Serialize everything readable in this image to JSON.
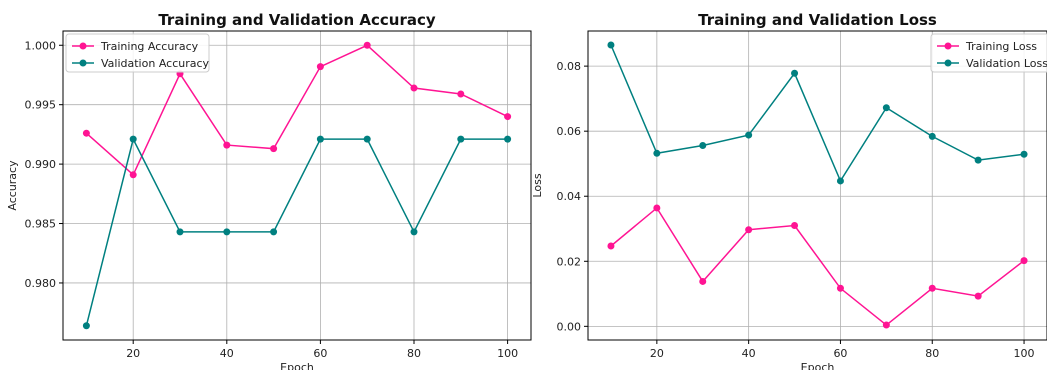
{
  "chart_data": [
    {
      "type": "line",
      "title": "Training and Validation Accuracy",
      "xlabel": "Epoch",
      "ylabel": "Accuracy",
      "x": [
        10,
        20,
        30,
        40,
        50,
        60,
        70,
        80,
        90,
        100
      ],
      "xlim": [
        5,
        105
      ],
      "ylim": [
        0.9752,
        1.0012
      ],
      "xticks": [
        20,
        40,
        60,
        80,
        100
      ],
      "xtick_labels": [
        "20",
        "40",
        "60",
        "80",
        "100"
      ],
      "yticks": [
        0.98,
        0.985,
        0.99,
        0.995,
        1.0
      ],
      "ytick_labels": [
        "0.980",
        "0.985",
        "0.990",
        "0.995",
        "1.000"
      ],
      "grid": true,
      "legend_position": "top-left",
      "series": [
        {
          "name": "Training Accuracy",
          "color": "#ff1493",
          "values": [
            0.9926,
            0.9891,
            0.9976,
            0.9916,
            0.9913,
            0.9982,
            1.0,
            0.9964,
            0.9959,
            0.994
          ]
        },
        {
          "name": "Validation Accuracy",
          "color": "#008080",
          "values": [
            0.9764,
            0.9921,
            0.9843,
            0.9843,
            0.9843,
            0.9921,
            0.9921,
            0.9843,
            0.9921,
            0.9921
          ]
        }
      ]
    },
    {
      "type": "line",
      "title": "Training and Validation Loss",
      "xlabel": "Epoch",
      "ylabel": "Loss",
      "x": [
        10,
        20,
        30,
        40,
        50,
        60,
        70,
        80,
        90,
        100
      ],
      "xlim": [
        5,
        105
      ],
      "ylim": [
        -0.0042,
        0.0908
      ],
      "xticks": [
        20,
        40,
        60,
        80,
        100
      ],
      "xtick_labels": [
        "20",
        "40",
        "60",
        "80",
        "100"
      ],
      "yticks": [
        0.0,
        0.02,
        0.04,
        0.06,
        0.08
      ],
      "ytick_labels": [
        "0.00",
        "0.02",
        "0.04",
        "0.06",
        "0.08"
      ],
      "grid": true,
      "legend_position": "top-right",
      "series": [
        {
          "name": "Training Loss",
          "color": "#ff1493",
          "values": [
            0.0247,
            0.0364,
            0.0138,
            0.0297,
            0.031,
            0.0117,
            0.0004,
            0.0117,
            0.0093,
            0.0202
          ]
        },
        {
          "name": "Validation Loss",
          "color": "#008080",
          "values": [
            0.0865,
            0.0532,
            0.0556,
            0.0588,
            0.0778,
            0.0447,
            0.0672,
            0.0584,
            0.0511,
            0.0529
          ]
        }
      ]
    }
  ]
}
